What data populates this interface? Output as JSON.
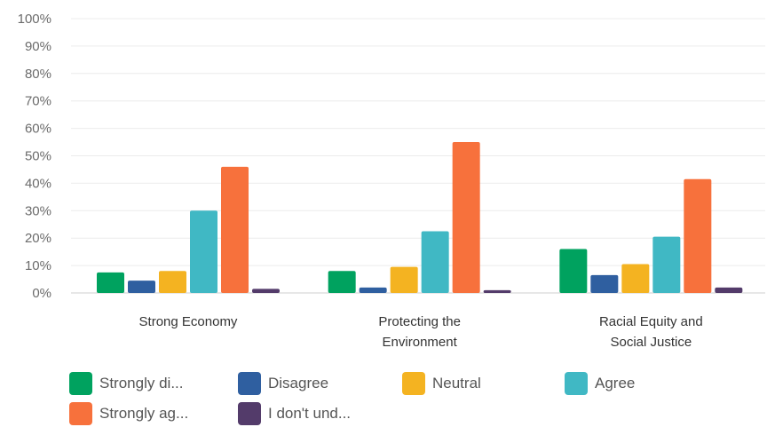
{
  "chart_data": {
    "type": "bar",
    "categories": [
      [
        "Strong Economy"
      ],
      [
        "Protecting the",
        "Environment"
      ],
      [
        "Racial Equity and",
        "Social Justice"
      ]
    ],
    "y_ticks": [
      "0%",
      "10%",
      "20%",
      "30%",
      "40%",
      "50%",
      "60%",
      "70%",
      "80%",
      "90%",
      "100%"
    ],
    "ylim": [
      0,
      100
    ],
    "grid": true,
    "legend_position": "bottom",
    "series": [
      {
        "name": "Strongly di...",
        "color": "#00a25f",
        "values": [
          7.5,
          8,
          16
        ]
      },
      {
        "name": "Disagree",
        "color": "#2f5fa0",
        "values": [
          4.5,
          2,
          6.5
        ]
      },
      {
        "name": "Neutral",
        "color": "#f4b321",
        "values": [
          8,
          9.5,
          10.5
        ]
      },
      {
        "name": "Agree",
        "color": "#40b8c4",
        "values": [
          30,
          22.5,
          20.5
        ]
      },
      {
        "name": "Strongly ag...",
        "color": "#f7713c",
        "values": [
          46,
          55,
          41.5
        ]
      },
      {
        "name": "I don't und...",
        "color": "#533b6a",
        "values": [
          1.5,
          1,
          2
        ]
      }
    ]
  }
}
